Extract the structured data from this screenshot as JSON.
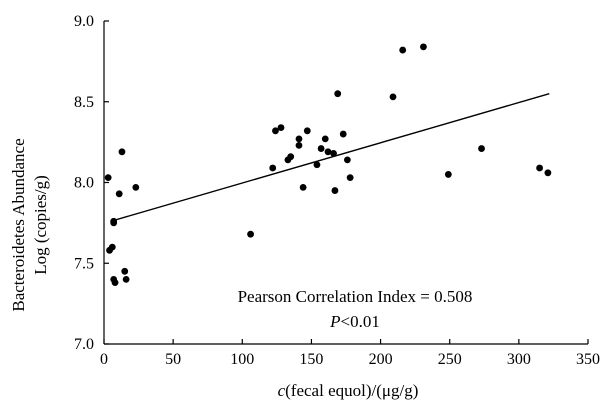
{
  "chart_data": {
    "type": "scatter",
    "title": "",
    "xlabel": {
      "italic": "c",
      "rest": "(fecal equol)/(μg/g)"
    },
    "ylabel": [
      "Bacteroidetes Abundance",
      "Log (copies/g)"
    ],
    "xlim": [
      0,
      350
    ],
    "ylim": [
      7.0,
      9.0
    ],
    "x_ticks": [
      0,
      50,
      100,
      150,
      200,
      250,
      300,
      350
    ],
    "x_tick_labels": [
      "0",
      "50",
      "100",
      "150",
      "200",
      "250",
      "300",
      "350"
    ],
    "y_ticks": [
      7.0,
      7.5,
      8.0,
      8.5,
      9.0
    ],
    "y_tick_labels": [
      "7.0",
      "7.5",
      "8.0",
      "8.5",
      "9.0"
    ],
    "grid": false,
    "point_color": "#000000",
    "points": [
      {
        "x": 3,
        "y": 8.03
      },
      {
        "x": 4,
        "y": 7.58
      },
      {
        "x": 6,
        "y": 7.6
      },
      {
        "x": 7,
        "y": 7.75
      },
      {
        "x": 7,
        "y": 7.76
      },
      {
        "x": 7,
        "y": 7.4
      },
      {
        "x": 8,
        "y": 7.38
      },
      {
        "x": 11,
        "y": 7.93
      },
      {
        "x": 13,
        "y": 8.19
      },
      {
        "x": 15,
        "y": 7.45
      },
      {
        "x": 16,
        "y": 7.4
      },
      {
        "x": 23,
        "y": 7.97
      },
      {
        "x": 106,
        "y": 7.68
      },
      {
        "x": 122,
        "y": 8.09
      },
      {
        "x": 124,
        "y": 8.32
      },
      {
        "x": 128,
        "y": 8.34
      },
      {
        "x": 133,
        "y": 8.14
      },
      {
        "x": 135,
        "y": 8.16
      },
      {
        "x": 141,
        "y": 8.27
      },
      {
        "x": 141,
        "y": 8.23
      },
      {
        "x": 144,
        "y": 7.97
      },
      {
        "x": 147,
        "y": 8.32
      },
      {
        "x": 154,
        "y": 8.11
      },
      {
        "x": 157,
        "y": 8.21
      },
      {
        "x": 160,
        "y": 8.27
      },
      {
        "x": 162,
        "y": 8.19
      },
      {
        "x": 166,
        "y": 8.18
      },
      {
        "x": 167,
        "y": 7.95
      },
      {
        "x": 169,
        "y": 8.55
      },
      {
        "x": 173,
        "y": 8.3
      },
      {
        "x": 176,
        "y": 8.14
      },
      {
        "x": 178,
        "y": 8.03
      },
      {
        "x": 209,
        "y": 8.53
      },
      {
        "x": 216,
        "y": 8.82
      },
      {
        "x": 231,
        "y": 8.84
      },
      {
        "x": 249,
        "y": 8.05
      },
      {
        "x": 273,
        "y": 8.21
      },
      {
        "x": 315,
        "y": 8.09
      },
      {
        "x": 321,
        "y": 8.06
      }
    ],
    "trendline": {
      "x": [
        5,
        322
      ],
      "y": [
        7.76,
        8.55
      ]
    },
    "annotations": [
      {
        "text": "Pearson Correlation Index = 0.508"
      },
      {
        "italic": "P",
        "rest": "<0.01"
      }
    ]
  }
}
